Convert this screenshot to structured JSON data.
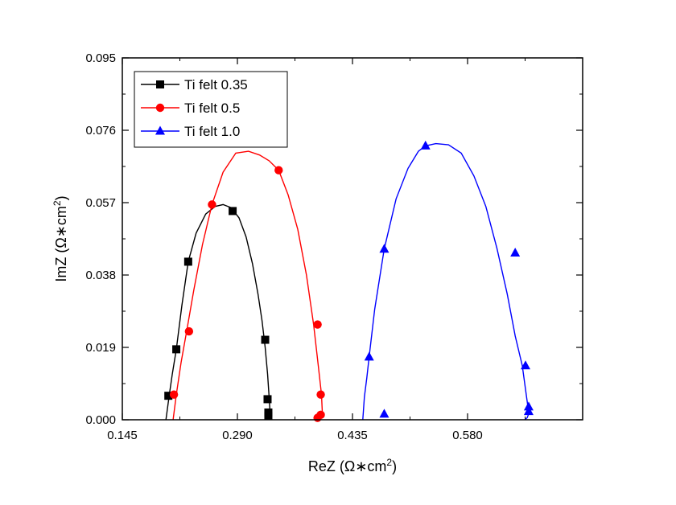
{
  "chart_data": {
    "type": "scatter",
    "xlabel": "ReZ (Ω∗cm²)",
    "ylabel": "ImZ (Ω∗cm²)",
    "xlabel_parts": {
      "main": "ReZ (Ω∗cm",
      "sup": "2",
      "tail": ")"
    },
    "ylabel_parts": {
      "main": "ImZ (Ω∗cm",
      "sup": "2",
      "tail": ")"
    },
    "xlim": [
      0.145,
      0.725
    ],
    "ylim": [
      0.0,
      0.095
    ],
    "xticks": [
      0.145,
      0.29,
      0.435,
      0.58
    ],
    "xtick_labels": [
      "0.145",
      "0.290",
      "0.435",
      "0.580"
    ],
    "yticks": [
      0.0,
      0.019,
      0.038,
      0.057,
      0.076,
      0.095
    ],
    "ytick_labels": [
      "0.000",
      "0.019",
      "0.038",
      "0.057",
      "0.076",
      "0.095"
    ],
    "grid": false,
    "legend_position": "top-left",
    "series": [
      {
        "name": "Ti felt 0.35",
        "color": "#000000",
        "marker": "square",
        "x": [
          0.203,
          0.213,
          0.228,
          0.284,
          0.325,
          0.328,
          0.329,
          0.329
        ],
        "y": [
          0.0063,
          0.0185,
          0.0415,
          0.0548,
          0.021,
          0.0054,
          0.0019,
          0.001
        ],
        "line_x": [
          0.2,
          0.204,
          0.208,
          0.213,
          0.22,
          0.228,
          0.238,
          0.25,
          0.262,
          0.272,
          0.282,
          0.292,
          0.301,
          0.309,
          0.316,
          0.321,
          0.325,
          0.328,
          0.33,
          0.331,
          0.33,
          0.329
        ],
        "line_y": [
          0.0,
          0.0063,
          0.012,
          0.0185,
          0.03,
          0.0415,
          0.049,
          0.054,
          0.056,
          0.0565,
          0.0557,
          0.053,
          0.048,
          0.041,
          0.033,
          0.026,
          0.019,
          0.012,
          0.006,
          0.0025,
          0.0008,
          0.0
        ]
      },
      {
        "name": "Ti felt 0.5",
        "color": "#ff0000",
        "marker": "circle",
        "x": [
          0.21,
          0.229,
          0.258,
          0.342,
          0.391,
          0.395,
          0.395,
          0.391
        ],
        "y": [
          0.0066,
          0.0232,
          0.0565,
          0.0655,
          0.025,
          0.0066,
          0.0013,
          0.0005
        ],
        "line_x": [
          0.209,
          0.213,
          0.219,
          0.226,
          0.235,
          0.246,
          0.258,
          0.272,
          0.288,
          0.304,
          0.318,
          0.33,
          0.342,
          0.354,
          0.366,
          0.377,
          0.386,
          0.392,
          0.396,
          0.397,
          0.395,
          0.391
        ],
        "line_y": [
          0.0,
          0.0066,
          0.015,
          0.0232,
          0.034,
          0.046,
          0.0565,
          0.065,
          0.07,
          0.0705,
          0.0695,
          0.068,
          0.0655,
          0.059,
          0.05,
          0.038,
          0.025,
          0.014,
          0.0066,
          0.002,
          0.0008,
          0.0
        ]
      },
      {
        "name": "Ti felt 1.0",
        "color": "#0000ff",
        "marker": "triangle",
        "x": [
          0.456,
          0.475,
          0.475,
          0.527,
          0.64,
          0.653,
          0.657,
          0.657
        ],
        "y": [
          0.0165,
          0.0448,
          0.0015,
          0.0719,
          0.0438,
          0.0142,
          0.0034,
          0.0022
        ],
        "line_x": [
          0.448,
          0.45,
          0.453,
          0.456,
          0.463,
          0.475,
          0.49,
          0.505,
          0.518,
          0.527,
          0.54,
          0.556,
          0.572,
          0.588,
          0.603,
          0.617,
          0.63,
          0.64,
          0.649,
          0.653,
          0.656,
          0.657,
          0.655,
          0.652
        ],
        "line_y": [
          0.0,
          0.006,
          0.011,
          0.0165,
          0.029,
          0.0448,
          0.058,
          0.066,
          0.0705,
          0.0719,
          0.0725,
          0.0722,
          0.07,
          0.064,
          0.056,
          0.045,
          0.033,
          0.022,
          0.0142,
          0.008,
          0.0034,
          0.0015,
          0.0005,
          0.0
        ]
      }
    ]
  }
}
